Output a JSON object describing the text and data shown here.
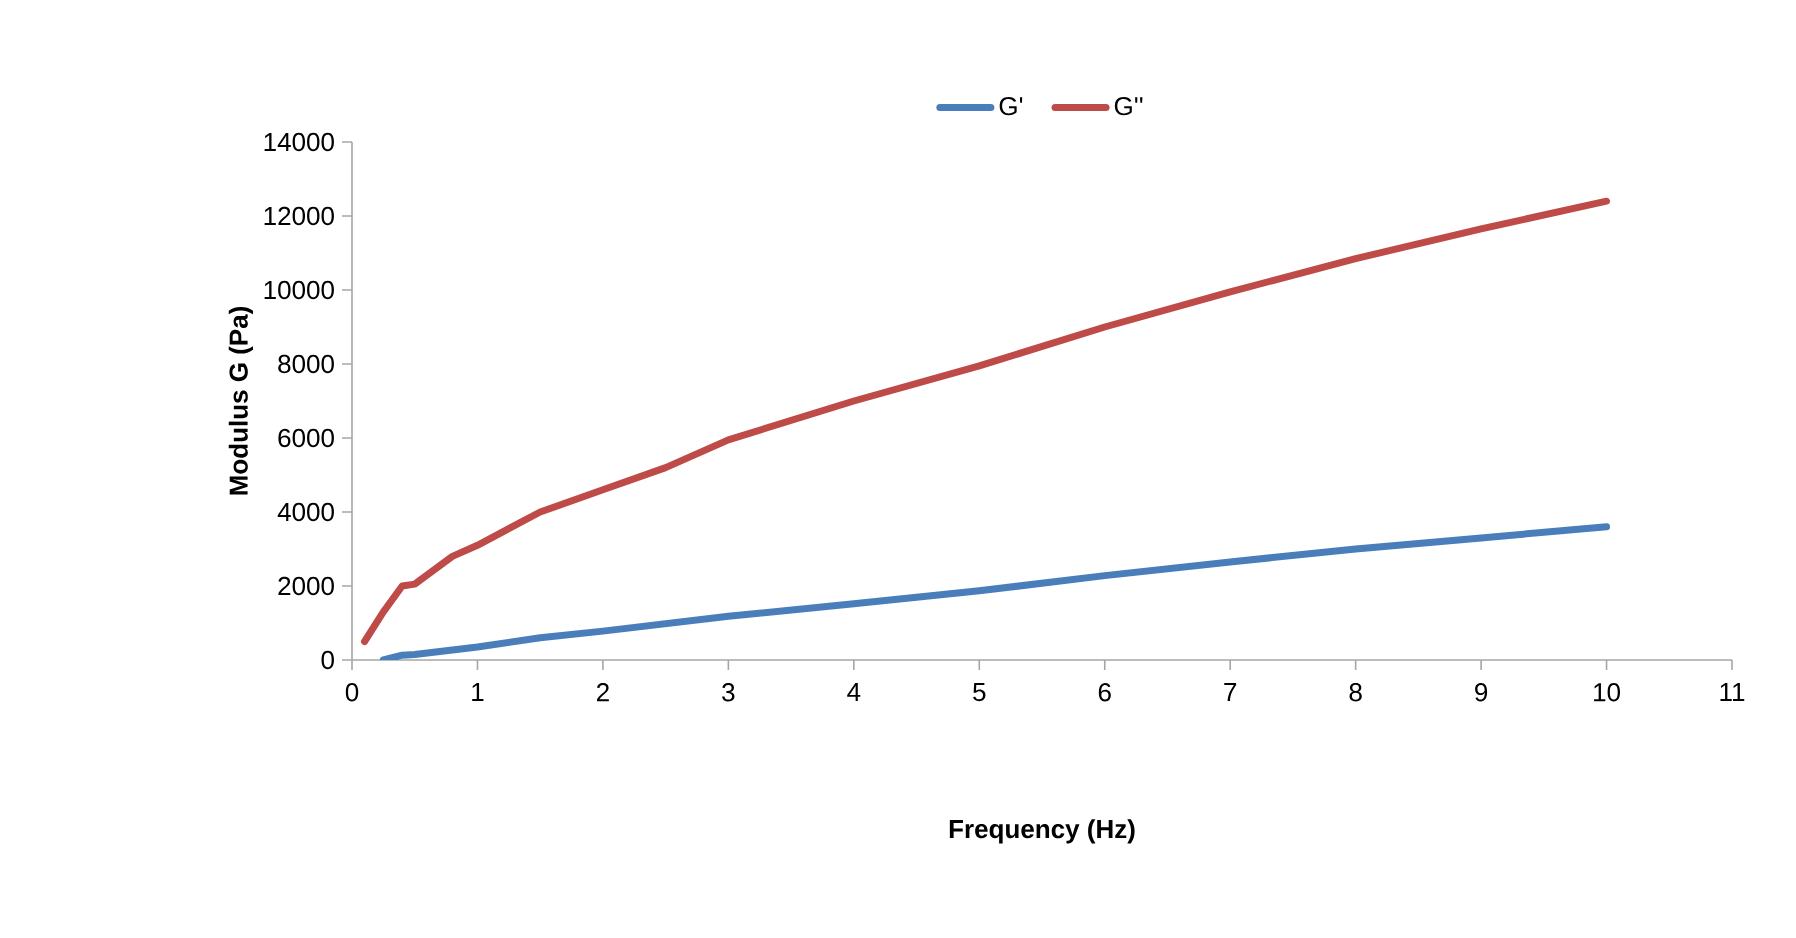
{
  "chart_data": {
    "type": "line",
    "xlabel": "Frequency (Hz)",
    "ylabel": "Modulus G (Pa)",
    "xlim": [
      0,
      11
    ],
    "ylim": [
      0,
      14000
    ],
    "xticks": [
      0,
      1,
      2,
      3,
      4,
      5,
      6,
      7,
      8,
      9,
      10,
      11
    ],
    "yticks": [
      0,
      2000,
      4000,
      6000,
      8000,
      10000,
      12000,
      14000
    ],
    "grid": false,
    "legend": "top",
    "marker": "none",
    "line_style": "solid",
    "series": [
      {
        "name": "G'",
        "color": "#4a7ebb",
        "x": [
          0.25,
          0.4,
          0.5,
          1,
          1.5,
          2,
          3,
          4,
          5,
          6,
          7,
          8,
          9,
          10
        ],
        "values": [
          0,
          130,
          150,
          350,
          600,
          780,
          1180,
          1520,
          1870,
          2280,
          2650,
          3000,
          3300,
          3600
        ]
      },
      {
        "name": "G''",
        "color": "#be4b48",
        "x": [
          0.1,
          0.25,
          0.4,
          0.5,
          0.8,
          1,
          1.5,
          2,
          2.5,
          3,
          4,
          5,
          6,
          7,
          8,
          9,
          10
        ],
        "values": [
          500,
          1300,
          2000,
          2050,
          2800,
          3100,
          4000,
          4600,
          5200,
          5950,
          7000,
          7950,
          9000,
          9950,
          10850,
          11650,
          12400
        ]
      }
    ]
  }
}
